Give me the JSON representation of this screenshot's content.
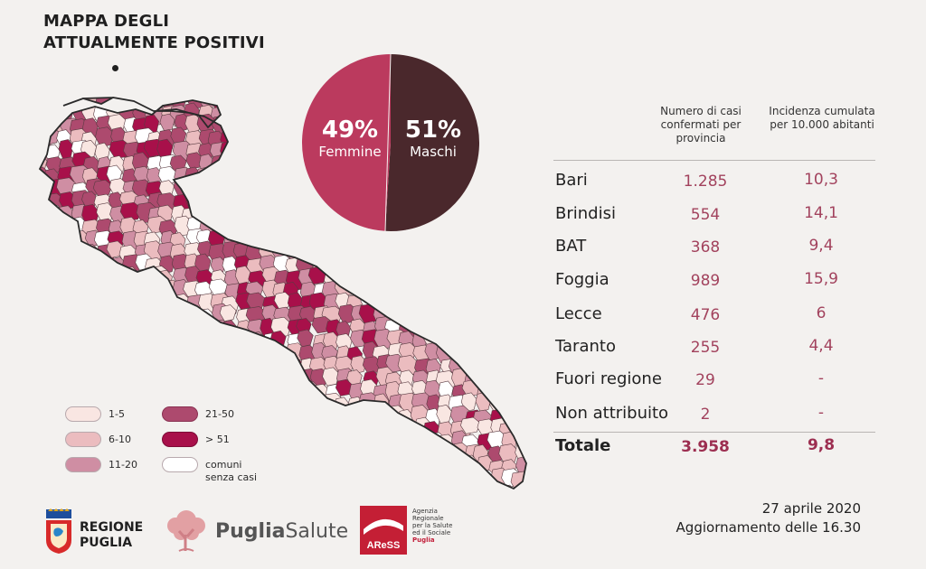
{
  "title": {
    "line1": "MAPPA DEGLI",
    "line2": "ATTUALMENTE POSITIVI"
  },
  "pie": {
    "femmine": {
      "pct": "49%",
      "label": "Femmine",
      "value": 49,
      "color": "#bb3a5e"
    },
    "maschi": {
      "pct": "51%",
      "label": "Maschi",
      "value": 51,
      "color": "#4a282c"
    }
  },
  "legend": [
    {
      "label": "1-5",
      "color": "#f9e6e2"
    },
    {
      "label": "6-10",
      "color": "#ebbcbf"
    },
    {
      "label": "11-20",
      "color": "#cf8ea3"
    },
    {
      "label": "21-50",
      "color": "#ad4a6e"
    },
    {
      "label": "> 51",
      "color": "#a8104a"
    },
    {
      "label": "comuni senza casi",
      "color": "#ffffff"
    }
  ],
  "table": {
    "headers": {
      "cases": "Numero di casi confermati per provincia",
      "incidence": "Incidenza cumulata per 10.000 abitanti"
    },
    "rows": [
      {
        "provincia": "Bari",
        "casi": "1.285",
        "incidenza": "10,3"
      },
      {
        "provincia": "Brindisi",
        "casi": "554",
        "incidenza": "14,1"
      },
      {
        "provincia": "BAT",
        "casi": "368",
        "incidenza": "9,4"
      },
      {
        "provincia": "Foggia",
        "casi": "989",
        "incidenza": "15,9"
      },
      {
        "provincia": "Lecce",
        "casi": "476",
        "incidenza": "6"
      },
      {
        "provincia": "Taranto",
        "casi": "255",
        "incidenza": "4,4"
      },
      {
        "provincia": "Fuori regione",
        "casi": "29",
        "incidenza": "-"
      },
      {
        "provincia": "Non attribuito",
        "casi": "2",
        "incidenza": "-"
      }
    ],
    "total": {
      "provincia": "Totale",
      "casi": "3.958",
      "incidenza": "9,8"
    }
  },
  "chart_data": {
    "type": "pie",
    "title": "MAPPA DEGLI ATTUALMENTE POSITIVI",
    "categories": [
      "Femmine",
      "Maschi"
    ],
    "values": [
      49,
      51
    ],
    "unit": "%"
  },
  "logos": {
    "regione": {
      "line1": "REGIONE",
      "line2": "PUGLIA"
    },
    "puglia_salute": {
      "bold": "Puglia",
      "regular": "Salute"
    },
    "aress": {
      "mark": "AReSS",
      "lines": [
        "Agenzia",
        "Regionale",
        "per la Salute",
        "ed il Sociale"
      ],
      "highlight": "Puglia"
    }
  },
  "footer": {
    "date": "27 aprile 2020",
    "update": "Aggiornamento delle 16.30"
  }
}
